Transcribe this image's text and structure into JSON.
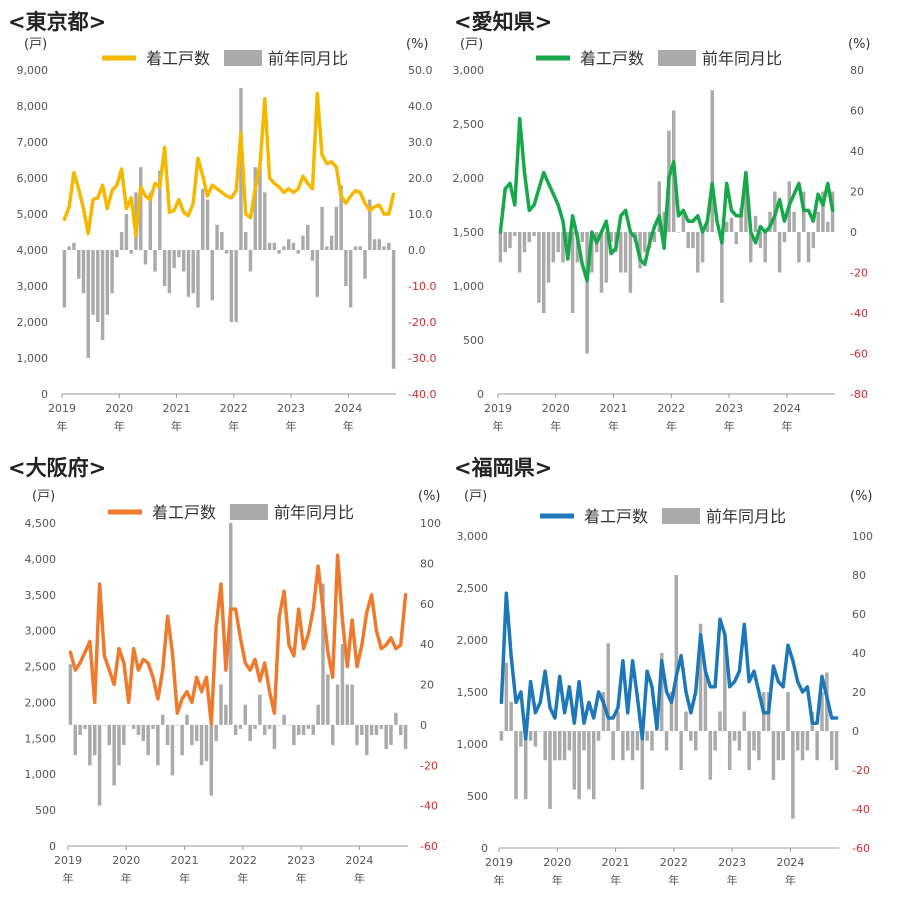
{
  "chart_data": [
    {
      "type": "bar+line",
      "title": "<東京都>",
      "left_unit": "(戸)",
      "right_unit": "(%)",
      "legend": [
        "着工戸数",
        "前年同月比"
      ],
      "line_color": "#f5b800",
      "left_ticks": [
        "9,000",
        "8,000",
        "7,000",
        "6,000",
        "5,000",
        "4,000",
        "3,000",
        "2,000",
        "1,000",
        "0"
      ],
      "right_ticks": [
        "50.0",
        "40.0",
        "30.0",
        "20.0",
        "10.0",
        "0.0",
        "-10.0",
        "-20.0",
        "-30.0",
        "-40.0"
      ],
      "x_ticks": [
        "2019",
        "2020",
        "2021",
        "2022",
        "2023",
        "2024"
      ],
      "x_tick_suffix": "年",
      "x_tick_months": [
        0,
        12,
        24,
        36,
        48,
        60
      ],
      "left_range": [
        0,
        9000
      ],
      "right_range": [
        -40,
        50
      ],
      "line_values": [
        4850,
        5200,
        6150,
        5700,
        5150,
        4450,
        5400,
        5450,
        5800,
        5150,
        5650,
        5800,
        6250,
        5150,
        5450,
        4400,
        5750,
        5500,
        5400,
        5850,
        5750,
        6850,
        5050,
        5100,
        5400,
        5050,
        4950,
        5300,
        6550,
        6050,
        5500,
        5800,
        5700,
        5600,
        5500,
        5450,
        5650,
        7250,
        5000,
        4900,
        5700,
        6350,
        8200,
        6000,
        5850,
        5750,
        5600,
        5700,
        5600,
        5700,
        6050,
        5850,
        5700,
        8350,
        6650,
        6400,
        6450,
        6300,
        5500,
        5300,
        5500,
        5650,
        5600,
        5300,
        5100,
        5200,
        5250,
        5000,
        5000,
        5550
      ],
      "bar_values": [
        -16,
        1,
        2,
        -8,
        -12,
        -30,
        -18,
        -20,
        -25,
        -18,
        -12,
        -2,
        5,
        10,
        -1,
        16,
        23,
        -4,
        16,
        -6,
        22,
        -10,
        -12,
        -5,
        -2,
        -6,
        -13,
        -12,
        -16,
        17,
        14,
        -14,
        7,
        5,
        -1,
        -20,
        -20,
        45,
        5,
        -6,
        23,
        24,
        16,
        2,
        2,
        -1,
        1,
        3,
        2,
        -1,
        4,
        7,
        -3,
        -13,
        12,
        1,
        4,
        12,
        18,
        -10,
        -16,
        1,
        1,
        -8,
        14,
        3,
        3,
        1,
        2,
        -33
      ],
      "series_names": [
        "着工戸数",
        "前年同月比"
      ]
    },
    {
      "type": "bar+line",
      "title": "<愛知県>",
      "left_unit": "(戸)",
      "right_unit": "(%)",
      "legend": [
        "着工戸数",
        "前年同月比"
      ],
      "line_color": "#16a84a",
      "left_ticks": [
        "3,000",
        "2,500",
        "2,000",
        "1,500",
        "1,000",
        "500",
        "0"
      ],
      "right_ticks": [
        "80",
        "60",
        "40",
        "20",
        "0",
        "-20",
        "-40",
        "-60",
        "-80"
      ],
      "x_ticks": [
        "2019",
        "2020",
        "2021",
        "2022",
        "2023",
        "2024"
      ],
      "x_tick_suffix": "年",
      "x_tick_months": [
        0,
        12,
        24,
        36,
        48,
        60
      ],
      "left_range": [
        0,
        3000
      ],
      "right_range": [
        -80,
        80
      ],
      "line_values": [
        1500,
        1900,
        1950,
        1750,
        2550,
        2050,
        1700,
        1750,
        1900,
        2050,
        1950,
        1850,
        1750,
        1600,
        1250,
        1650,
        1450,
        1200,
        1050,
        1500,
        1400,
        1500,
        1600,
        1300,
        1350,
        1650,
        1700,
        1500,
        1450,
        1250,
        1200,
        1400,
        1550,
        1650,
        1350,
        2000,
        2150,
        1650,
        1700,
        1600,
        1600,
        1650,
        1500,
        1600,
        1950,
        1600,
        1400,
        1950,
        1700,
        1650,
        1650,
        2050,
        1500,
        1400,
        1550,
        1500,
        1550,
        1650,
        1800,
        1600,
        1750,
        1850,
        1950,
        1700,
        1700,
        1600,
        1850,
        1750,
        1950,
        1700
      ],
      "bar_values": [
        -15,
        -10,
        -8,
        -2,
        -20,
        -10,
        -5,
        -2,
        -35,
        -40,
        -25,
        -15,
        -10,
        -15,
        -5,
        -40,
        -15,
        -5,
        -60,
        -20,
        -10,
        -30,
        -25,
        -5,
        -10,
        -20,
        -20,
        -30,
        -5,
        -18,
        -10,
        -8,
        -5,
        25,
        10,
        50,
        60,
        0,
        10,
        -8,
        -8,
        -20,
        -15,
        5,
        70,
        0,
        -35,
        5,
        7,
        -6,
        12,
        25,
        -15,
        8,
        -8,
        -15,
        10,
        20,
        -20,
        -5,
        25,
        10,
        -15,
        20,
        -15,
        -8,
        10,
        20,
        5,
        20
      ],
      "series_names": [
        "着工戸数",
        "前年同月比"
      ]
    },
    {
      "type": "bar+line",
      "title": "<大阪府>",
      "left_unit": "(戸)",
      "right_unit": "(%)",
      "legend": [
        "着工戸数",
        "前年同月比"
      ],
      "line_color": "#ee7a2e",
      "left_ticks": [
        "4,500",
        "4,000",
        "3,500",
        "3,000",
        "2,500",
        "2,000",
        "1,500",
        "1,000",
        "500",
        "0"
      ],
      "right_ticks": [
        "100",
        "80",
        "60",
        "40",
        "20",
        "0",
        "-20",
        "-40",
        "-60"
      ],
      "x_ticks": [
        "2019",
        "2020",
        "2021",
        "2022",
        "2023",
        "2024"
      ],
      "x_tick_suffix": "年",
      "x_tick_months": [
        0,
        12,
        24,
        36,
        48,
        60
      ],
      "left_range": [
        0,
        4500
      ],
      "right_range": [
        -60,
        100
      ],
      "line_values": [
        2700,
        2450,
        2550,
        2700,
        2850,
        2000,
        3650,
        2650,
        2450,
        2250,
        2750,
        2550,
        2000,
        2750,
        2450,
        2600,
        2550,
        2350,
        2050,
        2450,
        3200,
        2700,
        1850,
        2050,
        2150,
        2000,
        2350,
        2150,
        2350,
        1700,
        3050,
        3650,
        2450,
        3300,
        3300,
        2900,
        2550,
        2450,
        2600,
        2300,
        2550,
        2150,
        1850,
        3200,
        3550,
        2800,
        2650,
        3300,
        2750,
        2950,
        3300,
        3900,
        3300,
        2700,
        2350,
        4050,
        3150,
        2500,
        3150,
        2500,
        2800,
        3250,
        3500,
        3000,
        2750,
        2800,
        2900,
        2750,
        2800,
        3500
      ],
      "bar_values": [
        30,
        -15,
        -5,
        -2,
        -20,
        -15,
        -40,
        0,
        -10,
        -30,
        -20,
        -10,
        0,
        -2,
        -5,
        -8,
        -15,
        -2,
        -20,
        5,
        -10,
        -25,
        0,
        -15,
        5,
        -10,
        -8,
        -20,
        -18,
        -35,
        -8,
        20,
        10,
        100,
        -5,
        -2,
        10,
        -8,
        -2,
        15,
        -5,
        -2,
        -12,
        0,
        5,
        0,
        -10,
        -5,
        -5,
        -2,
        -5,
        10,
        70,
        25,
        -10,
        20,
        40,
        20,
        20,
        -10,
        -5,
        -15,
        -5,
        -5,
        -2,
        -12,
        -10,
        6,
        -5,
        -12
      ],
      "series_names": [
        "着工戸数",
        "前年同月比"
      ]
    },
    {
      "type": "bar+line",
      "title": "<福岡県>",
      "left_unit": "(戸)",
      "right_unit": "(%)",
      "legend": [
        "着工戸数",
        "前年同月比"
      ],
      "line_color": "#1d78b8",
      "left_ticks": [
        "3,000",
        "2,500",
        "2,000",
        "1,500",
        "1,000",
        "500",
        "0"
      ],
      "right_ticks": [
        "100",
        "80",
        "60",
        "40",
        "20",
        "0",
        "-20",
        "-40",
        "-60"
      ],
      "x_ticks": [
        "2019",
        "2020",
        "2021",
        "2022",
        "2023",
        "2024"
      ],
      "x_tick_suffix": "年",
      "x_tick_months": [
        0,
        12,
        24,
        36,
        48,
        60
      ],
      "left_range": [
        0,
        3000
      ],
      "right_range": [
        -60,
        100
      ],
      "line_values": [
        1400,
        2450,
        1850,
        1400,
        1500,
        1050,
        1600,
        1300,
        1400,
        1700,
        1350,
        1250,
        1650,
        1300,
        1550,
        1200,
        1600,
        1200,
        1400,
        1250,
        1500,
        1400,
        1250,
        1250,
        1350,
        1800,
        1300,
        1800,
        1450,
        1050,
        1700,
        1550,
        1150,
        1800,
        1500,
        1400,
        1650,
        1850,
        1500,
        1300,
        1500,
        2050,
        1700,
        1550,
        1550,
        2200,
        2050,
        1550,
        1600,
        1700,
        2150,
        1600,
        1700,
        1500,
        1300,
        1300,
        1750,
        1600,
        1550,
        1950,
        1800,
        1600,
        1500,
        1550,
        1200,
        1200,
        1650,
        1450,
        1250,
        1250
      ],
      "bar_values": [
        -5,
        35,
        15,
        -35,
        -8,
        -35,
        -5,
        -8,
        0,
        -15,
        -40,
        -15,
        -15,
        -15,
        -10,
        -30,
        -35,
        -10,
        -30,
        -35,
        -5,
        20,
        45,
        -15,
        10,
        -15,
        -10,
        -15,
        -10,
        -30,
        -5,
        -10,
        10,
        40,
        -10,
        20,
        80,
        -20,
        10,
        -5,
        -10,
        55,
        30,
        -25,
        -10,
        10,
        50,
        -20,
        -5,
        -10,
        10,
        -20,
        -10,
        -15,
        20,
        20,
        -25,
        -15,
        -15,
        20,
        -45,
        -10,
        -15,
        -10,
        10,
        -15,
        20,
        30,
        -15,
        -20
      ],
      "series_names": [
        "着工戸数",
        "前年同月比"
      ]
    }
  ]
}
